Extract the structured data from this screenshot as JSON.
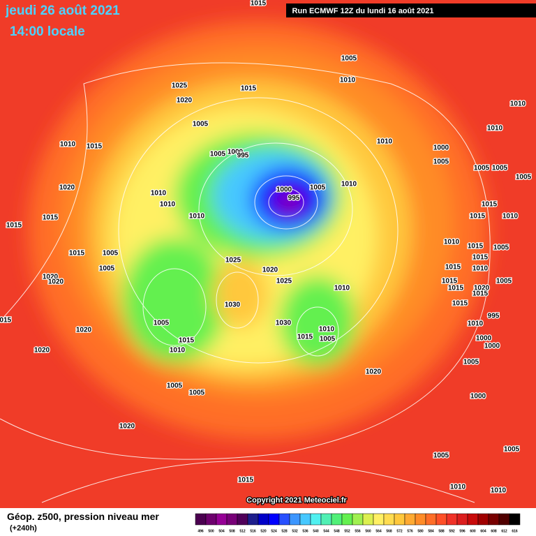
{
  "header": {
    "date": "jeudi 26 août 2021",
    "time": "14:00 locale",
    "run": "Run ECMWF 12Z du lundi 16 août 2021"
  },
  "map": {
    "isobar_labels": [
      "1015",
      "1005",
      "1010",
      "1025",
      "1015",
      "1020",
      "1010",
      "1005",
      "1010",
      "1010",
      "1015",
      "1010",
      "1000",
      "1005",
      "1000",
      "995",
      "1005",
      "1005",
      "1005",
      "1005",
      "1020",
      "1000",
      "1005",
      "1010",
      "1010",
      "1010",
      "995",
      "1015",
      "1015",
      "1015",
      "1010",
      "1015",
      "1010",
      "1010",
      "1015",
      "1005",
      "1015",
      "1005",
      "1005",
      "1025",
      "1020",
      "1015",
      "1010",
      "1015",
      "1020",
      "1020",
      "1025",
      "1015",
      "1015",
      "1020",
      "1005",
      "1015",
      "1010",
      "1030",
      "1015",
      "995",
      "1015",
      "1005",
      "1030",
      "1010",
      "1010",
      "1020",
      "1015",
      "1005",
      "1015",
      "1000",
      "1000",
      "1010",
      "1020",
      "1005",
      "1020",
      "1005",
      "1005",
      "1000",
      "1020",
      "1005",
      "1005",
      "1015",
      "1010",
      "1010"
    ]
  },
  "copyright": "Copyright 2021 Meteociel.fr",
  "legend": {
    "title": "Géop. z500, pression niveau mer",
    "lead": "(+240h)",
    "scale": [
      496,
      500,
      504,
      508,
      512,
      516,
      520,
      524,
      528,
      532,
      536,
      540,
      544,
      548,
      552,
      556,
      560,
      564,
      568,
      572,
      576,
      580,
      584,
      588,
      592,
      596,
      600,
      604,
      608,
      612,
      616
    ],
    "colors": [
      "#4b0050",
      "#6e006e",
      "#960096",
      "#780078",
      "#50005a",
      "#1e1e8c",
      "#0000c8",
      "#0000ff",
      "#2850ff",
      "#3c96ff",
      "#46c8ff",
      "#50f0f0",
      "#50f0b4",
      "#50f078",
      "#64f050",
      "#a0f050",
      "#dcf050",
      "#fff064",
      "#ffdc50",
      "#ffc83c",
      "#ffaa32",
      "#ff8c28",
      "#ff6e28",
      "#ff5028",
      "#f03228",
      "#dc1e1e",
      "#c80a0a",
      "#a00000",
      "#780000",
      "#500000",
      "#000000"
    ]
  }
}
